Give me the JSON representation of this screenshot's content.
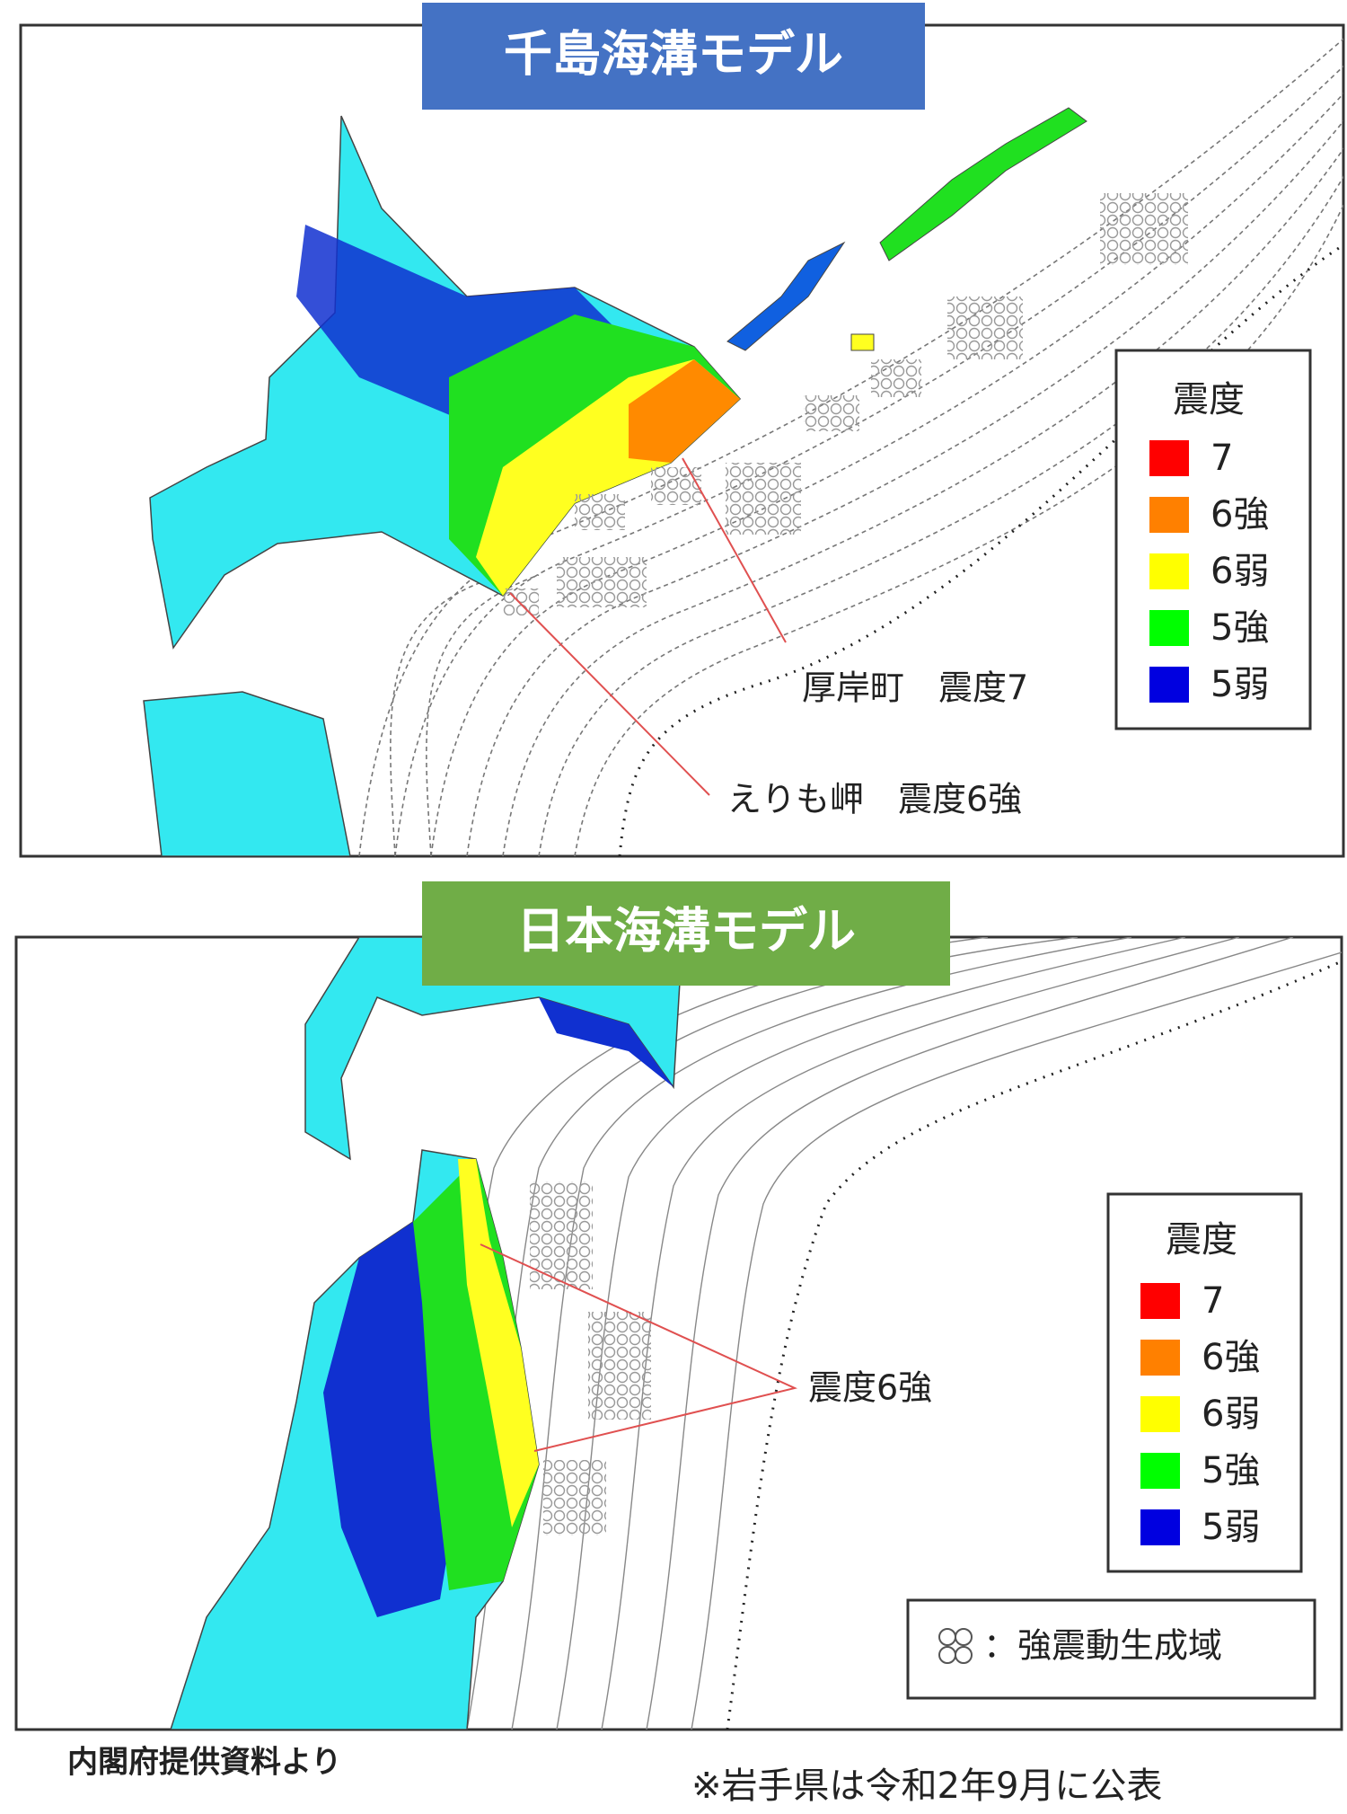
{
  "panels": [
    {
      "title": "千島海溝モデル",
      "legend": {
        "title": "震度",
        "items": [
          {
            "label": "7",
            "color": "#ff0000"
          },
          {
            "label": "6強",
            "color": "#ff8000"
          },
          {
            "label": "6弱",
            "color": "#ffff00"
          },
          {
            "label": "5強",
            "color": "#00ff00"
          },
          {
            "label": "5弱",
            "color": "#0000e0"
          }
        ]
      },
      "annotations": [
        "厚岸町　震度7",
        "えりも岬　震度6強"
      ]
    },
    {
      "title": "日本海溝モデル",
      "legend": {
        "title": "震度",
        "items": [
          {
            "label": "7",
            "color": "#ff0000"
          },
          {
            "label": "6強",
            "color": "#ff8000"
          },
          {
            "label": "6弱",
            "color": "#ffff00"
          },
          {
            "label": "5強",
            "color": "#00ff00"
          },
          {
            "label": "5弱",
            "color": "#0000e0"
          }
        ]
      },
      "annotations": [
        "震度6強"
      ],
      "key": "：強震動生成域"
    }
  ],
  "footer": {
    "source": "内閣府提供資料より",
    "note": "※岩手県は令和2年9月に公表"
  }
}
